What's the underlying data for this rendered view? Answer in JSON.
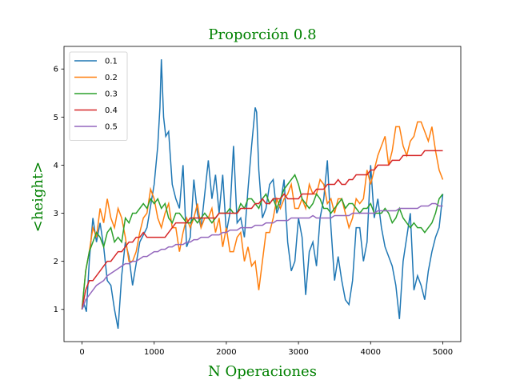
{
  "chart_data": {
    "type": "line",
    "title": "Proporción 0.8",
    "xlabel": "N Operaciones",
    "ylabel": "<height>",
    "xlim": [
      -250,
      5250
    ],
    "ylim": [
      0.33,
      6.47
    ],
    "xticks": [
      0,
      1000,
      2000,
      3000,
      4000,
      5000
    ],
    "yticks": [
      1,
      2,
      3,
      4,
      5,
      6
    ],
    "grid": false,
    "legend_position": "top-left",
    "label_color": "#008000",
    "series": [
      {
        "name": "0.1",
        "color": "#1f77b4",
        "x": [
          0,
          30,
          60,
          100,
          150,
          200,
          250,
          300,
          350,
          400,
          450,
          500,
          550,
          600,
          650,
          700,
          800,
          900,
          1000,
          1050,
          1080,
          1100,
          1130,
          1160,
          1200,
          1250,
          1300,
          1350,
          1400,
          1450,
          1500,
          1550,
          1600,
          1650,
          1700,
          1750,
          1800,
          1850,
          1900,
          1950,
          2000,
          2050,
          2100,
          2150,
          2200,
          2250,
          2300,
          2350,
          2400,
          2420,
          2450,
          2500,
          2550,
          2600,
          2650,
          2700,
          2750,
          2800,
          2850,
          2900,
          2950,
          3000,
          3050,
          3100,
          3150,
          3200,
          3250,
          3300,
          3350,
          3400,
          3450,
          3500,
          3550,
          3600,
          3650,
          3700,
          3750,
          3800,
          3850,
          3900,
          3950,
          4000,
          4050,
          4100,
          4150,
          4200,
          4250,
          4300,
          4350,
          4400,
          4450,
          4500,
          4550,
          4600,
          4650,
          4700,
          4750,
          4800,
          4850,
          4900,
          4950,
          5000
        ],
        "values": [
          1.0,
          1.1,
          0.95,
          2.0,
          2.9,
          2.4,
          2.8,
          2.3,
          1.6,
          1.5,
          1.0,
          0.6,
          1.7,
          2.4,
          2.1,
          1.5,
          2.4,
          2.7,
          3.6,
          4.4,
          5.2,
          6.2,
          5.0,
          4.6,
          4.7,
          3.6,
          3.3,
          3.1,
          4.0,
          2.3,
          2.5,
          3.7,
          3.0,
          2.7,
          3.4,
          4.1,
          3.3,
          3.8,
          3.0,
          3.8,
          2.6,
          3.0,
          4.4,
          2.8,
          2.9,
          2.5,
          3.5,
          4.4,
          5.2,
          5.1,
          3.9,
          2.9,
          3.1,
          3.6,
          3.7,
          3.0,
          3.2,
          3.7,
          2.4,
          1.8,
          2.0,
          2.9,
          2.5,
          1.3,
          2.2,
          2.4,
          1.9,
          2.9,
          3.3,
          4.1,
          2.7,
          1.6,
          2.1,
          1.6,
          1.2,
          1.1,
          1.6,
          2.7,
          2.7,
          2.0,
          2.4,
          4.0,
          2.9,
          3.3,
          2.7,
          2.3,
          2.1,
          1.9,
          1.5,
          0.8,
          2.0,
          2.5,
          3.0,
          1.4,
          1.7,
          1.5,
          1.2,
          1.8,
          2.2,
          2.5,
          2.7,
          3.4
        ]
      },
      {
        "name": "0.2",
        "color": "#ff7f0e",
        "x": [
          0,
          50,
          100,
          150,
          200,
          250,
          300,
          350,
          400,
          450,
          500,
          550,
          600,
          650,
          700,
          750,
          800,
          850,
          900,
          950,
          1000,
          1050,
          1100,
          1150,
          1200,
          1250,
          1300,
          1350,
          1400,
          1450,
          1500,
          1550,
          1600,
          1650,
          1700,
          1750,
          1800,
          1850,
          1900,
          1950,
          2000,
          2050,
          2100,
          2150,
          2200,
          2250,
          2300,
          2350,
          2400,
          2450,
          2500,
          2550,
          2600,
          2650,
          2700,
          2750,
          2800,
          2850,
          2900,
          2950,
          3000,
          3050,
          3100,
          3150,
          3200,
          3250,
          3300,
          3350,
          3400,
          3450,
          3500,
          3550,
          3600,
          3650,
          3700,
          3750,
          3800,
          3850,
          3900,
          3950,
          4000,
          4050,
          4100,
          4150,
          4200,
          4250,
          4300,
          4350,
          4400,
          4450,
          4500,
          4550,
          4600,
          4650,
          4700,
          4750,
          4800,
          4850,
          4900,
          4950,
          5000
        ],
        "values": [
          1.0,
          1.8,
          2.2,
          2.7,
          2.5,
          3.1,
          2.8,
          3.3,
          2.9,
          2.7,
          3.1,
          2.9,
          2.5,
          2.0,
          2.0,
          2.2,
          2.6,
          2.9,
          3.0,
          3.5,
          3.3,
          2.9,
          2.7,
          3.0,
          3.2,
          2.7,
          2.7,
          2.2,
          2.6,
          2.9,
          2.7,
          2.9,
          3.2,
          2.7,
          2.9,
          2.9,
          3.1,
          2.6,
          2.9,
          2.3,
          2.7,
          2.2,
          2.2,
          2.5,
          2.6,
          2.0,
          2.3,
          1.9,
          2.0,
          1.4,
          2.0,
          2.6,
          2.6,
          2.9,
          3.3,
          3.1,
          3.3,
          3.4,
          3.6,
          3.1,
          3.1,
          3.3,
          3.1,
          3.6,
          3.4,
          3.4,
          3.7,
          3.6,
          3.2,
          3.3,
          3.0,
          3.3,
          3.3,
          3.0,
          2.7,
          2.9,
          3.3,
          3.2,
          3.3,
          3.9,
          3.6,
          3.9,
          4.2,
          4.4,
          4.6,
          4.0,
          4.3,
          4.8,
          4.8,
          4.4,
          4.2,
          4.5,
          4.6,
          4.9,
          4.9,
          4.7,
          4.5,
          4.8,
          4.3,
          3.9,
          3.7
        ]
      },
      {
        "name": "0.3",
        "color": "#2ca02c",
        "x": [
          0,
          50,
          100,
          150,
          200,
          250,
          300,
          350,
          400,
          450,
          500,
          550,
          600,
          650,
          700,
          750,
          800,
          850,
          900,
          950,
          1000,
          1050,
          1100,
          1150,
          1200,
          1250,
          1300,
          1350,
          1400,
          1450,
          1500,
          1550,
          1600,
          1650,
          1700,
          1750,
          1800,
          1850,
          1900,
          1950,
          2000,
          2050,
          2100,
          2150,
          2200,
          2250,
          2300,
          2350,
          2400,
          2450,
          2500,
          2550,
          2600,
          2650,
          2700,
          2750,
          2800,
          2850,
          2900,
          2950,
          3000,
          3050,
          3100,
          3150,
          3200,
          3250,
          3300,
          3350,
          3400,
          3450,
          3500,
          3550,
          3600,
          3650,
          3700,
          3750,
          3800,
          3850,
          3900,
          3950,
          4000,
          4050,
          4100,
          4150,
          4200,
          4250,
          4300,
          4350,
          4400,
          4450,
          4500,
          4550,
          4600,
          4650,
          4700,
          4750,
          4800,
          4850,
          4900,
          4950,
          5000
        ],
        "values": [
          1.0,
          1.8,
          2.2,
          2.4,
          2.6,
          2.5,
          2.3,
          2.6,
          2.7,
          2.4,
          2.5,
          2.4,
          2.9,
          2.8,
          3.0,
          3.0,
          3.1,
          3.2,
          3.1,
          3.3,
          3.2,
          3.3,
          3.1,
          3.2,
          2.9,
          2.8,
          3.0,
          3.0,
          2.9,
          2.8,
          2.8,
          2.9,
          2.8,
          2.9,
          3.0,
          2.9,
          2.8,
          2.9,
          3.0,
          3.0,
          3.0,
          3.1,
          3.0,
          3.0,
          3.2,
          3.1,
          3.3,
          3.3,
          3.2,
          3.1,
          3.3,
          3.4,
          3.2,
          3.3,
          3.1,
          3.3,
          3.5,
          3.6,
          3.7,
          3.8,
          3.6,
          3.3,
          3.2,
          3.1,
          3.2,
          3.4,
          3.3,
          3.1,
          3.1,
          3.0,
          3.1,
          3.2,
          3.3,
          3.1,
          3.2,
          3.2,
          3.1,
          3.0,
          3.1,
          3.1,
          3.2,
          3.0,
          3.0,
          3.0,
          3.1,
          3.0,
          2.8,
          2.9,
          3.1,
          2.9,
          2.8,
          2.7,
          2.8,
          2.7,
          2.7,
          2.6,
          2.7,
          2.8,
          3.0,
          3.3,
          3.4
        ]
      },
      {
        "name": "0.4",
        "color": "#d62728",
        "x": [
          0,
          50,
          100,
          150,
          200,
          250,
          300,
          350,
          400,
          450,
          500,
          550,
          600,
          650,
          700,
          750,
          800,
          850,
          900,
          950,
          1000,
          1050,
          1100,
          1150,
          1200,
          1250,
          1300,
          1350,
          1400,
          1450,
          1500,
          1550,
          1600,
          1650,
          1700,
          1750,
          1800,
          1850,
          1900,
          1950,
          2000,
          2050,
          2100,
          2150,
          2200,
          2250,
          2300,
          2350,
          2400,
          2450,
          2500,
          2550,
          2600,
          2650,
          2700,
          2750,
          2800,
          2850,
          2900,
          2950,
          3000,
          3050,
          3100,
          3150,
          3200,
          3250,
          3300,
          3350,
          3400,
          3450,
          3500,
          3550,
          3600,
          3650,
          3700,
          3750,
          3800,
          3850,
          3900,
          3950,
          4000,
          4050,
          4100,
          4150,
          4200,
          4250,
          4300,
          4350,
          4400,
          4450,
          4500,
          4550,
          4600,
          4650,
          4700,
          4750,
          4800,
          4850,
          4900,
          4950,
          5000
        ],
        "values": [
          1.0,
          1.4,
          1.6,
          1.6,
          1.7,
          1.8,
          1.9,
          2.0,
          2.0,
          2.1,
          2.2,
          2.2,
          2.3,
          2.4,
          2.4,
          2.5,
          2.5,
          2.6,
          2.5,
          2.5,
          2.5,
          2.5,
          2.5,
          2.5,
          2.6,
          2.7,
          2.8,
          2.8,
          2.8,
          2.8,
          2.9,
          2.9,
          2.9,
          2.9,
          2.9,
          2.9,
          2.9,
          2.9,
          3.0,
          3.0,
          3.0,
          3.0,
          3.0,
          3.0,
          3.1,
          3.1,
          3.1,
          3.1,
          3.2,
          3.2,
          3.3,
          3.2,
          3.2,
          3.3,
          3.3,
          3.3,
          3.4,
          3.3,
          3.3,
          3.3,
          3.3,
          3.4,
          3.4,
          3.4,
          3.4,
          3.5,
          3.5,
          3.5,
          3.6,
          3.6,
          3.6,
          3.7,
          3.6,
          3.6,
          3.7,
          3.7,
          3.8,
          3.8,
          3.8,
          3.8,
          3.9,
          3.9,
          4.0,
          4.0,
          4.0,
          4.0,
          4.1,
          4.1,
          4.1,
          4.2,
          4.2,
          4.2,
          4.2,
          4.2,
          4.2,
          4.3,
          4.3,
          4.3,
          4.3,
          4.3,
          4.3
        ]
      },
      {
        "name": "0.5",
        "color": "#9467bd",
        "x": [
          0,
          50,
          100,
          150,
          200,
          250,
          300,
          350,
          400,
          450,
          500,
          550,
          600,
          650,
          700,
          750,
          800,
          850,
          900,
          950,
          1000,
          1050,
          1100,
          1150,
          1200,
          1250,
          1300,
          1350,
          1400,
          1450,
          1500,
          1550,
          1600,
          1650,
          1700,
          1750,
          1800,
          1850,
          1900,
          1950,
          2000,
          2050,
          2100,
          2150,
          2200,
          2250,
          2300,
          2350,
          2400,
          2450,
          2500,
          2550,
          2600,
          2650,
          2700,
          2750,
          2800,
          2850,
          2900,
          2950,
          3000,
          3050,
          3100,
          3150,
          3200,
          3250,
          3300,
          3350,
          3400,
          3450,
          3500,
          3550,
          3600,
          3650,
          3700,
          3750,
          3800,
          3850,
          3900,
          3950,
          4000,
          4050,
          4100,
          4150,
          4200,
          4250,
          4300,
          4350,
          4400,
          4450,
          4500,
          4550,
          4600,
          4650,
          4700,
          4750,
          4800,
          4850,
          4900,
          4950,
          5000
        ],
        "values": [
          1.0,
          1.2,
          1.3,
          1.4,
          1.5,
          1.55,
          1.6,
          1.7,
          1.75,
          1.8,
          1.85,
          1.9,
          1.95,
          1.95,
          2.0,
          2.0,
          2.05,
          2.1,
          2.1,
          2.15,
          2.2,
          2.2,
          2.25,
          2.25,
          2.3,
          2.3,
          2.35,
          2.35,
          2.35,
          2.4,
          2.4,
          2.45,
          2.45,
          2.5,
          2.5,
          2.5,
          2.55,
          2.55,
          2.55,
          2.6,
          2.6,
          2.65,
          2.65,
          2.65,
          2.7,
          2.7,
          2.7,
          2.7,
          2.75,
          2.75,
          2.75,
          2.8,
          2.8,
          2.8,
          2.85,
          2.85,
          2.85,
          2.85,
          2.9,
          2.9,
          2.9,
          2.9,
          2.9,
          2.9,
          2.95,
          2.9,
          2.9,
          2.9,
          2.9,
          2.9,
          2.95,
          2.95,
          2.95,
          2.95,
          2.95,
          3.0,
          3.0,
          3.0,
          3.0,
          3.0,
          3.0,
          3.0,
          3.05,
          3.05,
          3.05,
          3.05,
          3.05,
          3.05,
          3.1,
          3.1,
          3.1,
          3.1,
          3.1,
          3.1,
          3.15,
          3.15,
          3.15,
          3.2,
          3.2,
          3.15,
          3.15
        ]
      }
    ]
  }
}
